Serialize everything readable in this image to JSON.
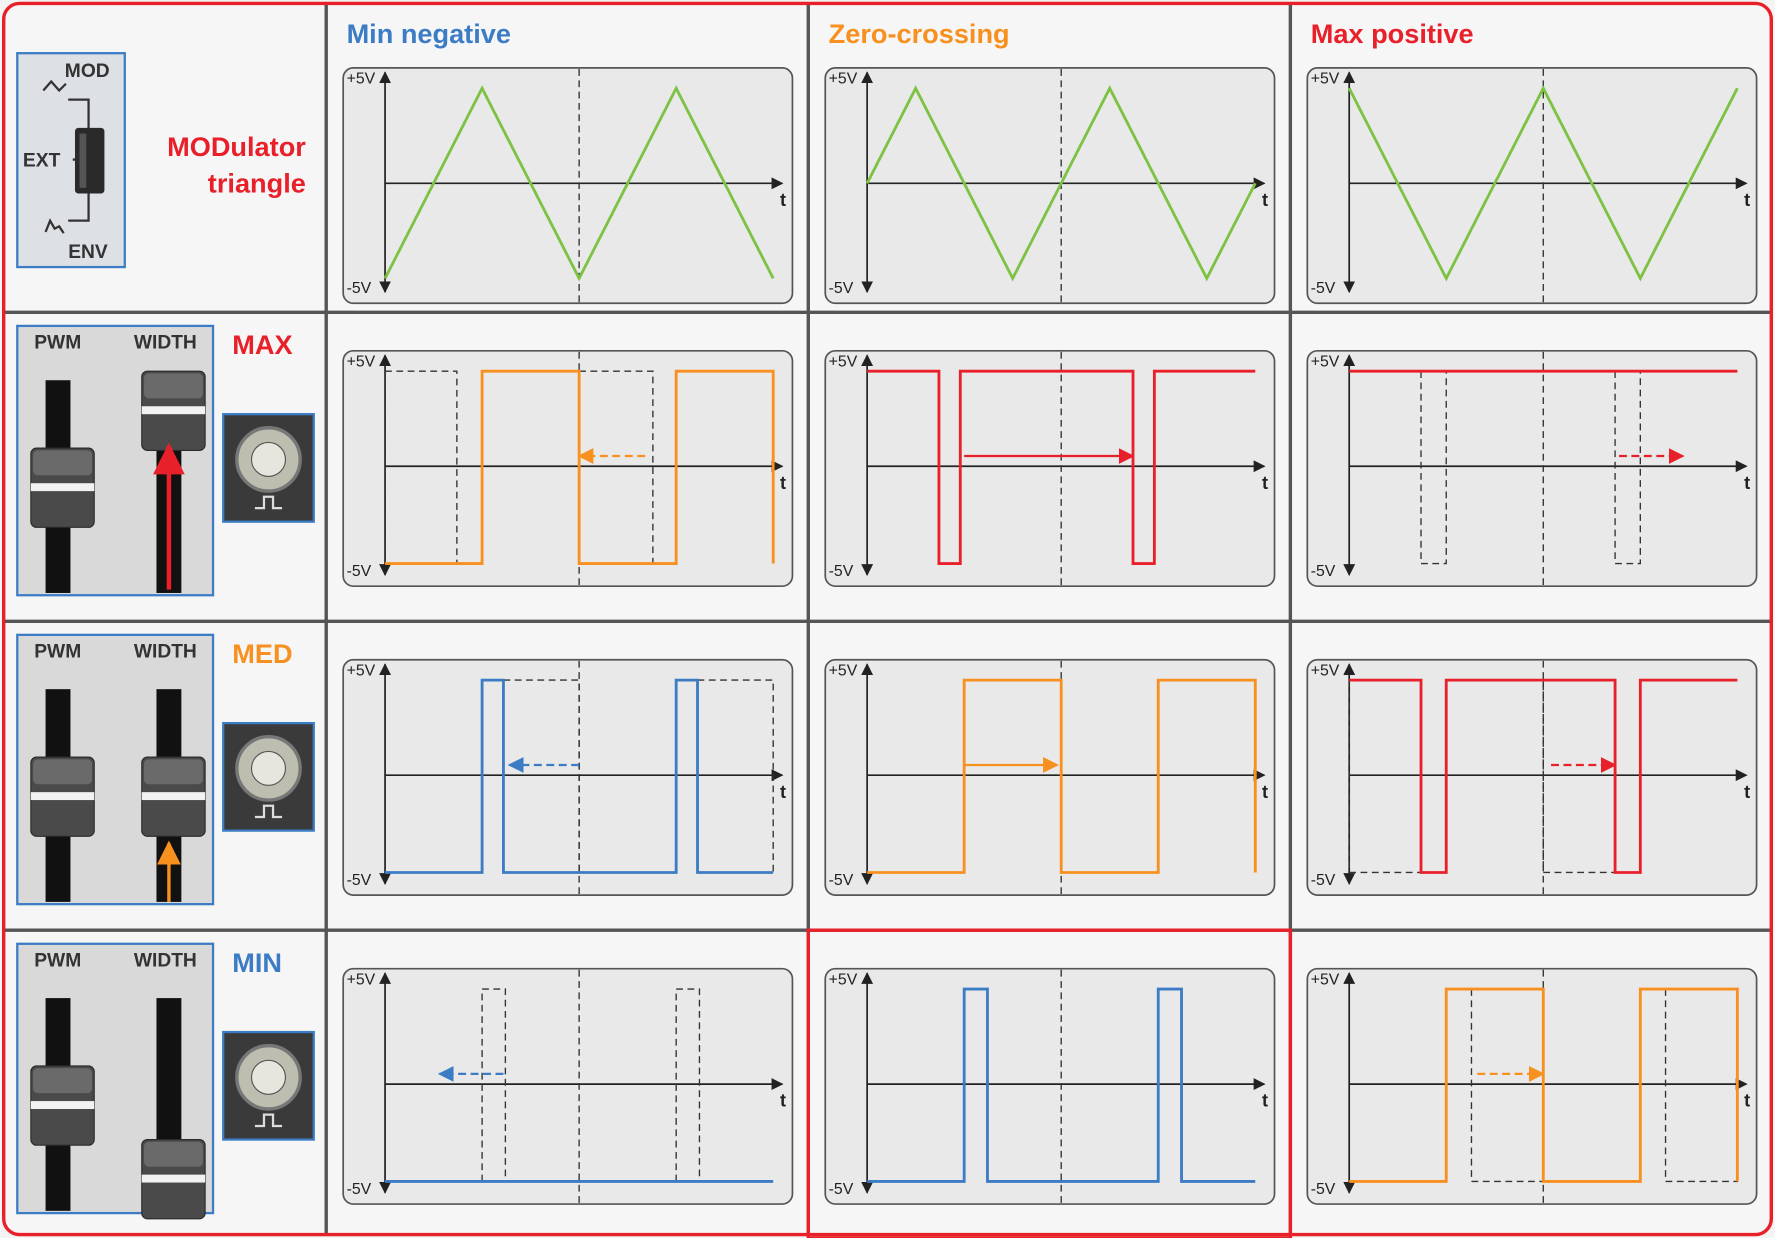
{
  "columns": [
    "Min negative",
    "Zero-crossing",
    "Max positive"
  ],
  "modulator": {
    "label_lines": [
      "MODulator",
      "triangle"
    ],
    "switch": [
      "MOD",
      "EXT",
      "ENV"
    ]
  },
  "rows": [
    {
      "label": "MAX",
      "fader_labels": [
        "PWM",
        "WIDTH"
      ]
    },
    {
      "label": "MED",
      "fader_labels": [
        "PWM",
        "WIDTH"
      ]
    },
    {
      "label": "MIN",
      "fader_labels": [
        "PWM",
        "WIDTH"
      ]
    }
  ],
  "axis": {
    "top": "+5V",
    "bottom": "-5V",
    "time": "t"
  }
}
